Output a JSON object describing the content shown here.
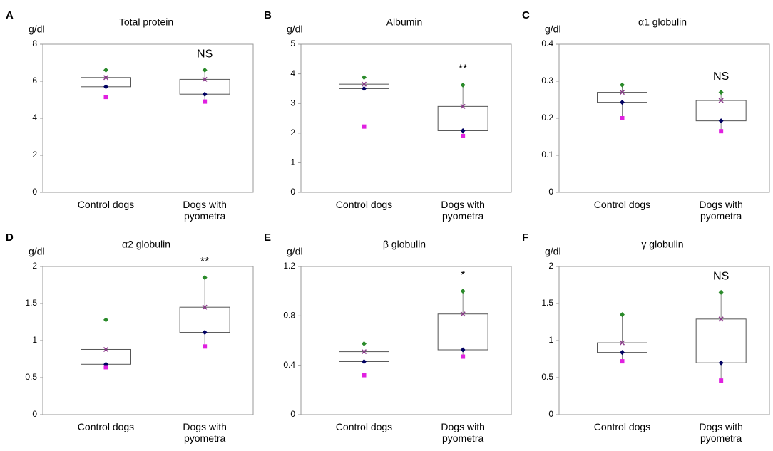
{
  "chart_data": [
    {
      "type": "box",
      "panel": "A",
      "title": "Total protein",
      "ylabel": "g/dl",
      "categories": [
        "Control dogs",
        "Dogs with pyometra"
      ],
      "ylim": [
        0,
        8
      ],
      "yticks": [
        0,
        2,
        4,
        6,
        8
      ],
      "annotation": "NS",
      "annotation_color": "#000000",
      "series": [
        {
          "color": "#2a8a2a",
          "marker": "diamond",
          "values": [
            6.6,
            6.6
          ]
        },
        {
          "color": "#8b3a8b",
          "marker": "x",
          "values": [
            6.2,
            6.1
          ]
        },
        {
          "color": "#000060",
          "marker": "diamond",
          "values": [
            5.7,
            5.3
          ]
        },
        {
          "color": "#e020e0",
          "marker": "square",
          "values": [
            5.15,
            4.9
          ]
        }
      ]
    },
    {
      "type": "box",
      "panel": "B",
      "title": "Albumin",
      "ylabel": "g/dl",
      "categories": [
        "Control dogs",
        "Dogs with pyometra"
      ],
      "ylim": [
        0,
        5
      ],
      "yticks": [
        0,
        1,
        2,
        3,
        4,
        5
      ],
      "annotation": "**",
      "annotation_color": "#e03030",
      "series": [
        {
          "color": "#2a8a2a",
          "marker": "diamond",
          "values": [
            3.88,
            3.62
          ]
        },
        {
          "color": "#8b3a8b",
          "marker": "x",
          "values": [
            3.65,
            2.9
          ]
        },
        {
          "color": "#000060",
          "marker": "diamond",
          "values": [
            3.5,
            2.08
          ]
        },
        {
          "color": "#e020e0",
          "marker": "square",
          "values": [
            2.22,
            1.9
          ]
        }
      ]
    },
    {
      "type": "box",
      "panel": "C",
      "title": "α1 globulin",
      "ylabel": "g/dl",
      "categories": [
        "Control dogs",
        "Dogs with pyometra"
      ],
      "ylim": [
        0,
        0.4
      ],
      "yticks": [
        0,
        0.1,
        0.2,
        0.3,
        0.4
      ],
      "annotation": "NS",
      "annotation_color": "#000000",
      "series": [
        {
          "color": "#2a8a2a",
          "marker": "diamond",
          "values": [
            0.29,
            0.27
          ]
        },
        {
          "color": "#8b3a8b",
          "marker": "x",
          "values": [
            0.27,
            0.248
          ]
        },
        {
          "color": "#000060",
          "marker": "diamond",
          "values": [
            0.243,
            0.193
          ]
        },
        {
          "color": "#e020e0",
          "marker": "square",
          "values": [
            0.2,
            0.165
          ]
        }
      ]
    },
    {
      "type": "box",
      "panel": "D",
      "title": "α2 globulin",
      "ylabel": "g/dl",
      "categories": [
        "Control dogs",
        "Dogs with pyometra"
      ],
      "ylim": [
        0,
        2
      ],
      "yticks": [
        0,
        0.5,
        1,
        1.5,
        2
      ],
      "annotation": "**",
      "annotation_color": "#e03030",
      "series": [
        {
          "color": "#2a8a2a",
          "marker": "diamond",
          "values": [
            1.28,
            1.85
          ]
        },
        {
          "color": "#8b3a8b",
          "marker": "x",
          "values": [
            0.88,
            1.45
          ]
        },
        {
          "color": "#000060",
          "marker": "diamond",
          "values": [
            0.68,
            1.11
          ]
        },
        {
          "color": "#e020e0",
          "marker": "square",
          "values": [
            0.64,
            0.92
          ]
        }
      ]
    },
    {
      "type": "box",
      "panel": "E",
      "title": "β globulin",
      "ylabel": "g/dl",
      "categories": [
        "Control dogs",
        "Dogs with pyometra"
      ],
      "ylim": [
        0,
        1.2
      ],
      "yticks": [
        0,
        0.4,
        0.8,
        1.2
      ],
      "annotation": "*",
      "annotation_color": "#e03030",
      "series": [
        {
          "color": "#2a8a2a",
          "marker": "diamond",
          "values": [
            0.575,
            1.0
          ]
        },
        {
          "color": "#8b3a8b",
          "marker": "x",
          "values": [
            0.51,
            0.815
          ]
        },
        {
          "color": "#000060",
          "marker": "diamond",
          "values": [
            0.43,
            0.525
          ]
        },
        {
          "color": "#e020e0",
          "marker": "square",
          "values": [
            0.32,
            0.47
          ]
        }
      ]
    },
    {
      "type": "box",
      "panel": "F",
      "title": "γ globulin",
      "ylabel": "g/dl",
      "categories": [
        "Control dogs",
        "Dogs with pyometra"
      ],
      "ylim": [
        0,
        2
      ],
      "yticks": [
        0,
        0.5,
        1,
        1.5,
        2
      ],
      "annotation": "NS",
      "annotation_color": "#000000",
      "series": [
        {
          "color": "#2a8a2a",
          "marker": "diamond",
          "values": [
            1.35,
            1.65
          ]
        },
        {
          "color": "#8b3a8b",
          "marker": "x",
          "values": [
            0.97,
            1.29
          ]
        },
        {
          "color": "#000060",
          "marker": "diamond",
          "values": [
            0.84,
            0.7
          ]
        },
        {
          "color": "#e020e0",
          "marker": "square",
          "values": [
            0.72,
            0.46
          ]
        }
      ]
    }
  ]
}
